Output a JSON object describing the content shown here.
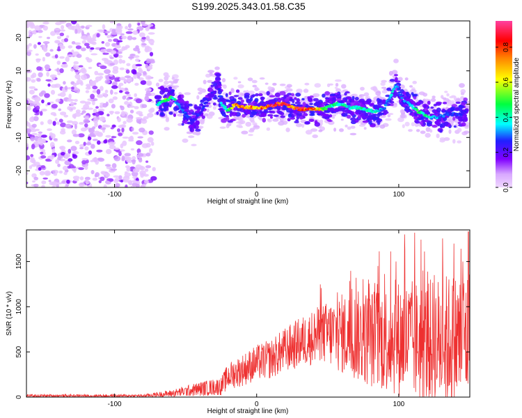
{
  "title": "S199.2025.343.01.58.C35",
  "chart_data": [
    {
      "type": "heatmap",
      "xlabel": "Height of straight line (km)",
      "ylabel": "Frequency (Hz)",
      "xlim": [
        -162,
        150
      ],
      "ylim": [
        -25,
        25
      ],
      "x_ticks": [
        -100,
        0,
        100
      ],
      "y_ticks": [
        -20,
        -10,
        0,
        10,
        20
      ],
      "noise_region_x": [
        -162,
        -73
      ],
      "signal_trace": [
        {
          "x": -70,
          "y": 0,
          "amp": 0.4
        },
        {
          "x": -65,
          "y": 1,
          "amp": 0.55
        },
        {
          "x": -60,
          "y": 2,
          "amp": 0.5
        },
        {
          "x": -55,
          "y": 0,
          "amp": 0.35
        },
        {
          "x": -50,
          "y": -3,
          "amp": 0.3
        },
        {
          "x": -45,
          "y": -5,
          "amp": 0.25
        },
        {
          "x": -40,
          "y": -3,
          "amp": 0.3
        },
        {
          "x": -35,
          "y": 1,
          "amp": 0.25
        },
        {
          "x": -30,
          "y": 3,
          "amp": 0.2
        },
        {
          "x": -27,
          "y": 7,
          "amp": 0.18
        },
        {
          "x": -25,
          "y": 0,
          "amp": 0.35
        },
        {
          "x": -20,
          "y": -2,
          "amp": 0.5
        },
        {
          "x": -15,
          "y": 0,
          "amp": 0.75
        },
        {
          "x": -10,
          "y": -1,
          "amp": 0.85
        },
        {
          "x": -5,
          "y": -1,
          "amp": 0.8
        },
        {
          "x": 0,
          "y": -1,
          "amp": 0.75
        },
        {
          "x": 5,
          "y": -1,
          "amp": 0.85
        },
        {
          "x": 10,
          "y": -0.5,
          "amp": 0.9
        },
        {
          "x": 15,
          "y": 0,
          "amp": 0.95
        },
        {
          "x": 20,
          "y": 0,
          "amp": 0.9
        },
        {
          "x": 25,
          "y": -1,
          "amp": 0.85
        },
        {
          "x": 30,
          "y": -1.5,
          "amp": 0.9
        },
        {
          "x": 35,
          "y": -1.5,
          "amp": 0.9
        },
        {
          "x": 40,
          "y": -1.5,
          "amp": 0.85
        },
        {
          "x": 45,
          "y": -1.5,
          "amp": 0.7
        },
        {
          "x": 50,
          "y": -1,
          "amp": 0.5
        },
        {
          "x": 55,
          "y": 0,
          "amp": 0.45
        },
        {
          "x": 60,
          "y": 0,
          "amp": 0.45
        },
        {
          "x": 65,
          "y": -1,
          "amp": 0.4
        },
        {
          "x": 70,
          "y": -1,
          "amp": 0.4
        },
        {
          "x": 75,
          "y": -1.5,
          "amp": 0.45
        },
        {
          "x": 80,
          "y": -2,
          "amp": 0.45
        },
        {
          "x": 85,
          "y": -2,
          "amp": 0.4
        },
        {
          "x": 90,
          "y": -1,
          "amp": 0.35
        },
        {
          "x": 95,
          "y": 3,
          "amp": 0.4
        },
        {
          "x": 98,
          "y": 6,
          "amp": 0.35
        },
        {
          "x": 100,
          "y": 4,
          "amp": 0.35
        },
        {
          "x": 103,
          "y": 1,
          "amp": 0.3
        },
        {
          "x": 108,
          "y": 0,
          "amp": 0.35
        },
        {
          "x": 113,
          "y": -2,
          "amp": 0.5
        },
        {
          "x": 118,
          "y": -3,
          "amp": 0.45
        },
        {
          "x": 123,
          "y": -4,
          "amp": 0.4
        },
        {
          "x": 128,
          "y": -4,
          "amp": 0.35
        },
        {
          "x": 133,
          "y": -3,
          "amp": 0.3
        },
        {
          "x": 138,
          "y": -3,
          "amp": 0.3
        },
        {
          "x": 143,
          "y": -3,
          "amp": 0.3
        },
        {
          "x": 148,
          "y": -2,
          "amp": 0.25
        }
      ],
      "colorbar": {
        "label": "Normalized spectral amplitude",
        "range": [
          0,
          0.95
        ],
        "ticks": [
          "0.0",
          "0.2",
          "0.4",
          "0.6",
          "0.8"
        ],
        "tick_values": [
          0,
          0.2,
          0.4,
          0.6,
          0.8
        ],
        "colors": [
          "#f0d8ff",
          "#d8a8ff",
          "#8000ff",
          "#2020ff",
          "#00ffff",
          "#00ff40",
          "#ffff00",
          "#ff8000",
          "#ff0000",
          "#ff40a0"
        ]
      }
    },
    {
      "type": "line",
      "xlabel": "Height of straight line (km)",
      "ylabel": "SNR (10 * v/v)",
      "xlim": [
        -162,
        150
      ],
      "ylim": [
        0,
        1850
      ],
      "x_ticks": [
        -100,
        0,
        100
      ],
      "y_ticks": [
        0,
        500,
        1000,
        1500
      ],
      "line_color": "#ee3030",
      "envelope": [
        {
          "x": -162,
          "base": 15,
          "spread": 15
        },
        {
          "x": -80,
          "base": 15,
          "spread": 15
        },
        {
          "x": -60,
          "base": 40,
          "spread": 40
        },
        {
          "x": -40,
          "base": 90,
          "spread": 80
        },
        {
          "x": -25,
          "base": 120,
          "spread": 100
        },
        {
          "x": -20,
          "base": 230,
          "spread": 150
        },
        {
          "x": -10,
          "base": 300,
          "spread": 180
        },
        {
          "x": 0,
          "base": 380,
          "spread": 200
        },
        {
          "x": 10,
          "base": 420,
          "spread": 220
        },
        {
          "x": 20,
          "base": 520,
          "spread": 250
        },
        {
          "x": 30,
          "base": 600,
          "spread": 280
        },
        {
          "x": 45,
          "base": 700,
          "spread": 320
        },
        {
          "x": 60,
          "base": 700,
          "spread": 450
        },
        {
          "x": 80,
          "base": 650,
          "spread": 550
        },
        {
          "x": 100,
          "base": 650,
          "spread": 650
        },
        {
          "x": 120,
          "base": 600,
          "spread": 700
        },
        {
          "x": 150,
          "base": 650,
          "spread": 800
        }
      ],
      "peaks": [
        {
          "x": 104,
          "y": 1800
        },
        {
          "x": 149,
          "y": 1830
        },
        {
          "x": 145,
          "y": 1500
        },
        {
          "x": 98,
          "y": 1500
        },
        {
          "x": 117,
          "y": 1400
        },
        {
          "x": 125,
          "y": 1350
        },
        {
          "x": 70,
          "y": 1320
        },
        {
          "x": 85,
          "y": 1250
        }
      ]
    }
  ]
}
